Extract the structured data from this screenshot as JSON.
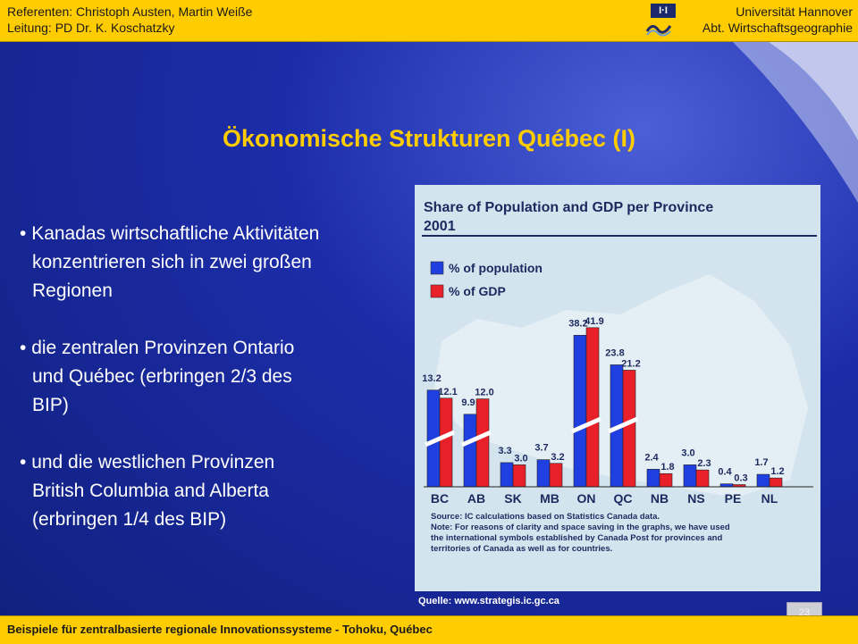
{
  "header": {
    "left_line1": "Referenten: Christoph Austen, Martin Weiße",
    "left_line2": "Leitung: PD Dr. K. Koschatzky",
    "right_line1": "Universität Hannover",
    "right_line2": "Abt. Wirtschaftsgeographie",
    "logo_text": "I·I"
  },
  "title": "Ökonomische Strukturen Québec (I)",
  "bullets": [
    {
      "lines": [
        "Kanadas wirtschaftliche Aktivitäten",
        "konzentrieren sich in zwei großen",
        "Regionen"
      ]
    },
    {
      "lines": [
        "die zentralen Provinzen Ontario",
        "und Québec (erbringen 2/3  des",
        "BIP)"
      ]
    },
    {
      "lines": [
        "und die westlichen Provinzen",
        "British Columbia and Alberta",
        "(erbringen 1/4 des BIP)"
      ]
    }
  ],
  "chart_data": {
    "type": "bar",
    "title": "Share of Population and GDP per Province 2001",
    "categories": [
      "BC",
      "AB",
      "SK",
      "MB",
      "ON",
      "QC",
      "NB",
      "NS",
      "PE",
      "NL"
    ],
    "series": [
      {
        "name": "% of population",
        "color": "#1f3fe0",
        "values": [
          13.2,
          9.9,
          3.3,
          3.7,
          38.2,
          23.8,
          2.4,
          3.0,
          0.4,
          1.7
        ]
      },
      {
        "name": "% of GDP",
        "color": "#e8202a",
        "values": [
          12.1,
          12.0,
          3.0,
          3.2,
          41.9,
          21.2,
          1.8,
          2.3,
          0.3,
          1.2
        ]
      }
    ],
    "value_labels_pop": [
      "13.2",
      "9.9",
      "3.3",
      "3.7",
      "38.2",
      "23.8",
      "2.4",
      "3.0",
      "0.4",
      "1.7"
    ],
    "value_labels_gdp": [
      "12.1",
      "12.0",
      "3.0",
      "3.2",
      "41.9",
      "21.2",
      "1.8",
      "2.3",
      "0.3",
      "1.2"
    ],
    "broken_axis_categories": [
      "BC",
      "AB",
      "ON",
      "QC"
    ],
    "note_lines": [
      "Source: IC calculations based on Statistics Canada data.",
      "Note:  For reasons of clarity and space saving in the graphs, we have used",
      "the international symbols established by Canada Post for provinces and",
      "territories of Canada as well as for countries."
    ],
    "legend_position": "top-left"
  },
  "source": "Quelle:  www.strategis.ic.gc.ca",
  "page_number": "23",
  "footer": "Beispiele für zentralbasierte regionale Innovationssysteme - Tohoku, Québec"
}
